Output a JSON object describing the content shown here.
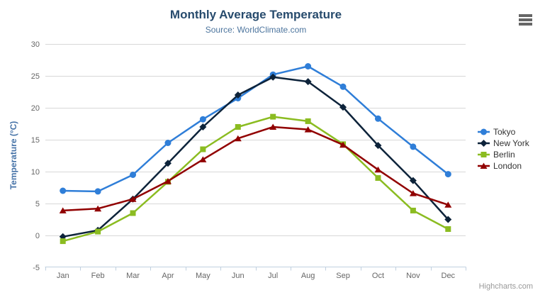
{
  "header": {
    "title": "Monthly Average Temperature",
    "subtitle": "Source: WorldClimate.com"
  },
  "credits": {
    "label": "Highcharts.com"
  },
  "toolbar": {
    "export_menu_icon": "hamburger-icon"
  },
  "chart_data": {
    "type": "line",
    "title": "Monthly Average Temperature",
    "subtitle": "Source: WorldClimate.com",
    "xlabel": "",
    "ylabel": "Temperature (°C)",
    "ylim": [
      -5,
      30
    ],
    "ytick_step": 5,
    "grid": true,
    "legend_position": "right-middle",
    "categories": [
      "Jan",
      "Feb",
      "Mar",
      "Apr",
      "May",
      "Jun",
      "Jul",
      "Aug",
      "Sep",
      "Oct",
      "Nov",
      "Dec"
    ],
    "series": [
      {
        "name": "Tokyo",
        "color": "#2f7ed8",
        "marker": "circle",
        "values": [
          7.0,
          6.9,
          9.5,
          14.5,
          18.2,
          21.5,
          25.2,
          26.5,
          23.3,
          18.3,
          13.9,
          9.6
        ]
      },
      {
        "name": "New York",
        "color": "#0d233a",
        "marker": "diamond",
        "values": [
          -0.2,
          0.8,
          5.7,
          11.3,
          17.0,
          22.0,
          24.8,
          24.1,
          20.1,
          14.1,
          8.6,
          2.5
        ]
      },
      {
        "name": "Berlin",
        "color": "#8bbc21",
        "marker": "square",
        "values": [
          -0.9,
          0.6,
          3.5,
          8.4,
          13.5,
          17.0,
          18.6,
          17.9,
          14.3,
          9.0,
          3.9,
          1.0
        ]
      },
      {
        "name": "London",
        "color": "#910000",
        "marker": "triangle",
        "values": [
          3.9,
          4.2,
          5.7,
          8.5,
          11.9,
          15.2,
          17.0,
          16.6,
          14.2,
          10.3,
          6.6,
          4.8
        ]
      }
    ],
    "colors": {
      "title": "#274b6d",
      "subtitle": "#4d759e",
      "axis_title": "#4572a7",
      "axis_labels": "#666666",
      "gridline": "#d8d8d8",
      "axis_line": "#c0d0e0",
      "legend_text": "#333333",
      "credits": "#999999",
      "background": "#ffffff"
    }
  }
}
